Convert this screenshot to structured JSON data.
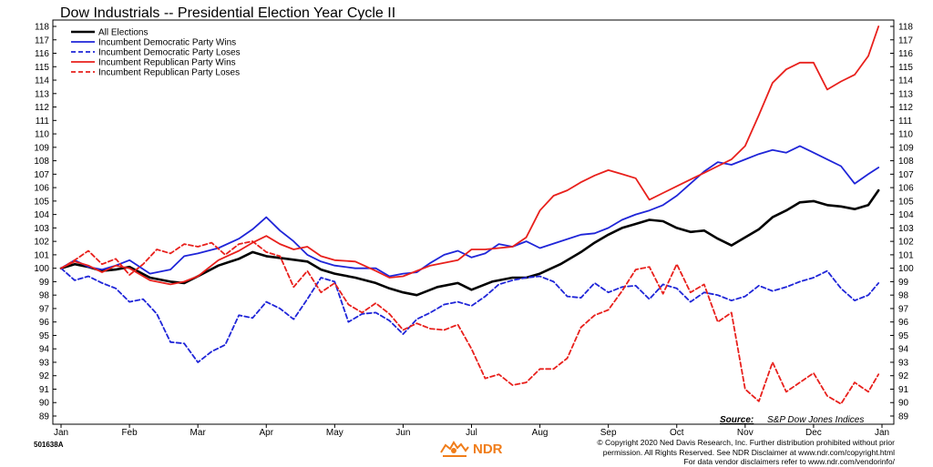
{
  "chart_data": {
    "type": "line",
    "title": "Dow Industrials -- Presidential Election Year Cycle II",
    "x_labels": [
      "Jan",
      "Feb",
      "Mar",
      "Apr",
      "May",
      "Jun",
      "Jul",
      "Aug",
      "Sep",
      "Oct",
      "Nov",
      "Dec",
      "Jan"
    ],
    "ylim": [
      88.5,
      118.5
    ],
    "y_ticks": [
      89,
      90,
      91,
      92,
      93,
      94,
      95,
      96,
      97,
      98,
      99,
      100,
      101,
      102,
      103,
      104,
      105,
      106,
      107,
      108,
      109,
      110,
      111,
      112,
      113,
      114,
      115,
      116,
      117,
      118
    ],
    "y_axis_sides": "both",
    "grid": false,
    "legend_position": "top-left",
    "source_label": "Source:",
    "source_text": "S&P Dow Jones Indices",
    "series": [
      {
        "name": "All Elections",
        "color": "#000000",
        "style": "solid",
        "width": 2.6,
        "x": [
          0,
          0.2,
          0.4,
          0.6,
          0.8,
          1.0,
          1.3,
          1.6,
          1.8,
          2.0,
          2.3,
          2.6,
          2.8,
          3.0,
          3.3,
          3.6,
          3.8,
          4.0,
          4.3,
          4.6,
          4.8,
          5.0,
          5.2,
          5.5,
          5.8,
          6.0,
          6.3,
          6.6,
          6.8,
          7.0,
          7.3,
          7.6,
          7.8,
          8.0,
          8.2,
          8.4,
          8.6,
          8.8,
          9.0,
          9.2,
          9.4,
          9.6,
          9.8,
          10.0,
          10.2,
          10.4,
          10.6,
          10.8,
          11.0,
          11.2,
          11.4,
          11.6,
          11.8,
          11.95
        ],
        "y": [
          100,
          100.3,
          100.1,
          99.8,
          99.9,
          100.1,
          99.3,
          99.0,
          98.9,
          99.4,
          100.2,
          100.7,
          101.2,
          100.9,
          100.7,
          100.5,
          99.9,
          99.6,
          99.3,
          98.9,
          98.5,
          98.2,
          98.0,
          98.6,
          98.9,
          98.4,
          99.0,
          99.3,
          99.3,
          99.6,
          100.3,
          101.2,
          101.9,
          102.5,
          103.0,
          103.3,
          103.6,
          103.5,
          103.0,
          102.7,
          102.8,
          102.2,
          101.7,
          102.3,
          102.9,
          103.8,
          104.3,
          104.9,
          105.0,
          104.7,
          104.6,
          104.4,
          104.7,
          105.8
        ]
      },
      {
        "name": "Incumbent Democratic Party Wins",
        "color": "#1f25d8",
        "style": "solid",
        "width": 1.8,
        "x": [
          0,
          0.2,
          0.4,
          0.6,
          0.8,
          1.0,
          1.3,
          1.6,
          1.8,
          2.0,
          2.3,
          2.6,
          2.8,
          3.0,
          3.2,
          3.4,
          3.6,
          3.8,
          4.0,
          4.3,
          4.6,
          4.8,
          5.0,
          5.2,
          5.4,
          5.6,
          5.8,
          6.0,
          6.2,
          6.4,
          6.6,
          6.8,
          7.0,
          7.3,
          7.6,
          7.8,
          8.0,
          8.2,
          8.4,
          8.6,
          8.8,
          9.0,
          9.2,
          9.4,
          9.6,
          9.8,
          10.0,
          10.2,
          10.4,
          10.6,
          10.8,
          11.0,
          11.2,
          11.4,
          11.6,
          11.8,
          11.95
        ],
        "y": [
          100,
          100.6,
          100.1,
          99.9,
          100.2,
          100.6,
          99.6,
          99.9,
          100.9,
          101.1,
          101.5,
          102.2,
          102.9,
          103.8,
          102.8,
          102.0,
          101.0,
          100.5,
          100.2,
          100.0,
          100.0,
          99.4,
          99.6,
          99.7,
          100.4,
          101.0,
          101.3,
          100.8,
          101.1,
          101.8,
          101.6,
          102.0,
          101.5,
          102.0,
          102.5,
          102.6,
          103.0,
          103.6,
          104.0,
          104.3,
          104.7,
          105.4,
          106.3,
          107.2,
          107.9,
          107.7,
          108.1,
          108.5,
          108.8,
          108.6,
          109.1,
          108.6,
          108.1,
          107.6,
          106.3,
          107.0,
          107.5
        ]
      },
      {
        "name": "Incumbent Democratic Party Loses",
        "color": "#1f25d8",
        "style": "dashed",
        "width": 1.8,
        "x": [
          0,
          0.2,
          0.4,
          0.6,
          0.8,
          1.0,
          1.2,
          1.4,
          1.6,
          1.8,
          2.0,
          2.2,
          2.4,
          2.6,
          2.8,
          3.0,
          3.2,
          3.4,
          3.6,
          3.8,
          4.0,
          4.2,
          4.4,
          4.6,
          4.8,
          5.0,
          5.2,
          5.4,
          5.6,
          5.8,
          6.0,
          6.2,
          6.4,
          6.6,
          6.8,
          7.0,
          7.2,
          7.4,
          7.6,
          7.8,
          8.0,
          8.2,
          8.4,
          8.6,
          8.8,
          9.0,
          9.2,
          9.4,
          9.6,
          9.8,
          10.0,
          10.2,
          10.4,
          10.6,
          10.8,
          11.0,
          11.2,
          11.4,
          11.6,
          11.8,
          11.95
        ],
        "y": [
          100,
          99.1,
          99.4,
          98.9,
          98.5,
          97.5,
          97.7,
          96.6,
          94.5,
          94.4,
          93.0,
          93.8,
          94.3,
          96.5,
          96.3,
          97.5,
          97.0,
          96.2,
          97.7,
          99.3,
          99.0,
          96.0,
          96.6,
          96.7,
          96.1,
          95.1,
          96.2,
          96.7,
          97.3,
          97.5,
          97.2,
          97.9,
          98.8,
          99.1,
          99.3,
          99.4,
          99.0,
          97.9,
          97.8,
          98.9,
          98.2,
          98.6,
          98.7,
          97.7,
          98.8,
          98.5,
          97.5,
          98.2,
          98.0,
          97.6,
          97.9,
          98.7,
          98.3,
          98.6,
          99.0,
          99.3,
          99.8,
          98.5,
          97.6,
          98.0,
          98.9
        ]
      },
      {
        "name": "Incumbent Republican Party Wins",
        "color": "#e8201c",
        "style": "solid",
        "width": 1.8,
        "x": [
          0,
          0.2,
          0.4,
          0.6,
          0.8,
          1.0,
          1.3,
          1.6,
          1.8,
          2.0,
          2.3,
          2.6,
          2.8,
          3.0,
          3.2,
          3.4,
          3.6,
          3.8,
          4.0,
          4.3,
          4.6,
          4.8,
          5.0,
          5.2,
          5.4,
          5.6,
          5.8,
          6.0,
          6.2,
          6.4,
          6.6,
          6.8,
          7.0,
          7.2,
          7.4,
          7.6,
          7.8,
          8.0,
          8.2,
          8.4,
          8.6,
          8.8,
          9.0,
          9.2,
          9.4,
          9.6,
          9.8,
          10.0,
          10.2,
          10.4,
          10.6,
          10.8,
          11.0,
          11.2,
          11.4,
          11.6,
          11.8,
          11.95
        ],
        "y": [
          100,
          100.5,
          100.2,
          99.7,
          100.2,
          100.0,
          99.1,
          98.8,
          99.0,
          99.4,
          100.6,
          101.3,
          101.9,
          102.4,
          101.8,
          101.4,
          101.6,
          100.9,
          100.6,
          100.5,
          99.8,
          99.3,
          99.4,
          99.8,
          100.2,
          100.4,
          100.6,
          101.4,
          101.4,
          101.5,
          101.6,
          102.3,
          104.3,
          105.4,
          105.8,
          106.4,
          106.9,
          107.3,
          107.0,
          106.7,
          105.1,
          105.6,
          106.1,
          106.6,
          107.1,
          107.6,
          108.1,
          109.1,
          111.4,
          113.8,
          114.8,
          115.3,
          115.3,
          113.3,
          113.9,
          114.4,
          115.8,
          118.0
        ]
      },
      {
        "name": "Incumbent Republican Party Loses",
        "color": "#e8201c",
        "style": "dashed",
        "width": 1.8,
        "x": [
          0,
          0.2,
          0.4,
          0.6,
          0.8,
          1.0,
          1.2,
          1.4,
          1.6,
          1.8,
          2.0,
          2.2,
          2.4,
          2.6,
          2.8,
          3.0,
          3.2,
          3.4,
          3.6,
          3.8,
          4.0,
          4.2,
          4.4,
          4.6,
          4.8,
          5.0,
          5.2,
          5.4,
          5.6,
          5.8,
          6.0,
          6.2,
          6.4,
          6.6,
          6.8,
          7.0,
          7.2,
          7.4,
          7.6,
          7.8,
          8.0,
          8.2,
          8.4,
          8.6,
          8.8,
          9.0,
          9.2,
          9.4,
          9.6,
          9.8,
          10.0,
          10.2,
          10.4,
          10.6,
          10.8,
          11.0,
          11.2,
          11.4,
          11.6,
          11.8,
          11.95
        ],
        "y": [
          100,
          100.6,
          101.3,
          100.3,
          100.7,
          99.5,
          100.3,
          101.4,
          101.1,
          101.8,
          101.6,
          101.9,
          101.0,
          101.8,
          102.0,
          101.2,
          100.9,
          98.6,
          99.8,
          98.2,
          98.9,
          97.3,
          96.7,
          97.4,
          96.6,
          95.4,
          95.9,
          95.5,
          95.4,
          95.8,
          94.0,
          91.8,
          92.1,
          91.3,
          91.5,
          92.5,
          92.5,
          93.3,
          95.6,
          96.5,
          96.9,
          98.3,
          99.9,
          100.1,
          98.1,
          100.3,
          98.2,
          98.8,
          96.0,
          96.7,
          91.0,
          90.1,
          93.0,
          90.8,
          91.5,
          92.2,
          90.5,
          89.9,
          91.5,
          90.8,
          92.1
        ]
      }
    ]
  },
  "footer": {
    "chart_id": "501638A",
    "logo_text": "NDR",
    "copyright_line1": "© Copyright 2020 Ned Davis Research, Inc. Further distribution prohibited without prior",
    "copyright_line2": "permission. All Rights Reserved. See NDR Disclaimer at www.ndr.com/copyright.html",
    "copyright_line3": "For data vendor disclaimers refer to www.ndr.com/vendorinfo/"
  },
  "colors": {
    "logo_orange": "#f07d1a",
    "blue": "#1f25d8",
    "red": "#e8201c"
  }
}
